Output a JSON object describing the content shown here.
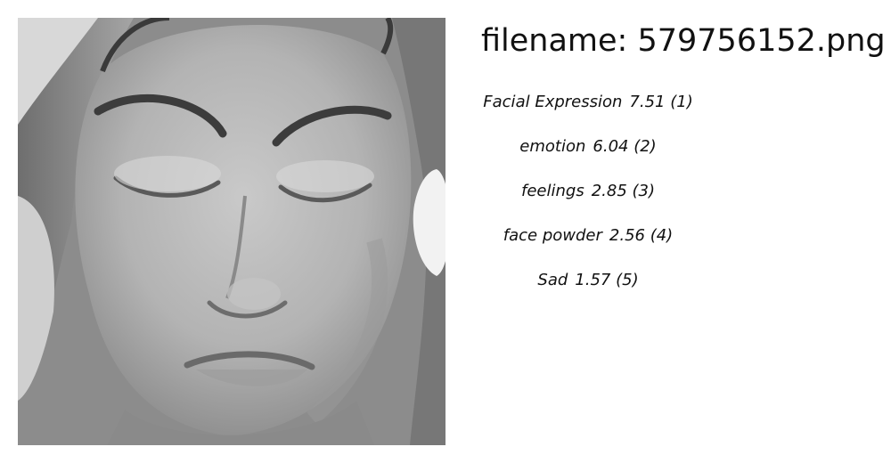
{
  "image": {
    "alt": "grayscale face photo",
    "icon": "face-photo"
  },
  "filename_text": "filename: 579756152.png",
  "predictions": [
    {
      "label": "Facial Expression",
      "score": "7.51 (1)"
    },
    {
      "label": "emotion",
      "score": "6.04 (2)"
    },
    {
      "label": "feelings",
      "score": "2.85 (3)"
    },
    {
      "label": "face powder",
      "score": "2.56 (4)"
    },
    {
      "label": "Sad",
      "score": "1.57 (5)"
    }
  ]
}
